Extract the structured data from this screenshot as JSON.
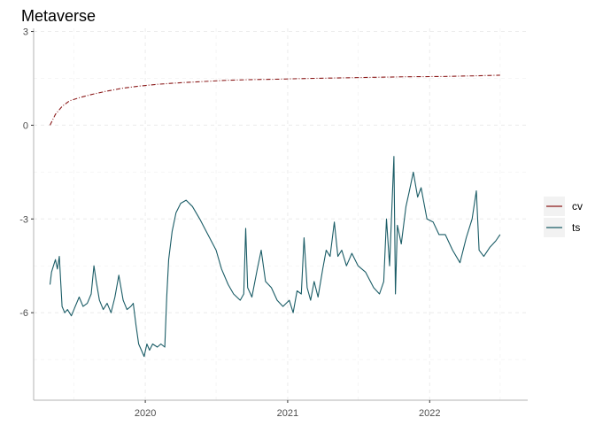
{
  "chart_data": {
    "type": "line",
    "title": "Metaverse",
    "xlabel": "",
    "ylabel": "",
    "x_ticks": [
      "2020",
      "2021",
      "2022"
    ],
    "y_ticks": [
      3,
      0,
      -3,
      -6
    ],
    "ylim": [
      -8.8,
      3.1
    ],
    "xlim": [
      "2019-03-20",
      "2022-09-10"
    ],
    "grid": true,
    "legend_position": "right",
    "series": [
      {
        "name": "cv",
        "color": "#8b1a1a",
        "line_style": "dot-dash",
        "points": [
          [
            "2019-05-01",
            0.0
          ],
          [
            "2019-05-15",
            0.35
          ],
          [
            "2019-06-01",
            0.6
          ],
          [
            "2019-06-20",
            0.78
          ],
          [
            "2019-07-15",
            0.88
          ],
          [
            "2019-08-15",
            0.98
          ],
          [
            "2019-09-20",
            1.08
          ],
          [
            "2019-11-01",
            1.18
          ],
          [
            "2019-12-15",
            1.25
          ],
          [
            "2020-02-01",
            1.31
          ],
          [
            "2020-04-01",
            1.36
          ],
          [
            "2020-06-01",
            1.4
          ],
          [
            "2020-08-01",
            1.44
          ],
          [
            "2020-10-01",
            1.46
          ],
          [
            "2020-12-01",
            1.47
          ],
          [
            "2021-02-01",
            1.49
          ],
          [
            "2021-05-01",
            1.51
          ],
          [
            "2021-08-01",
            1.53
          ],
          [
            "2021-11-01",
            1.55
          ],
          [
            "2022-02-01",
            1.56
          ],
          [
            "2022-05-01",
            1.58
          ],
          [
            "2022-07-01",
            1.6
          ]
        ]
      },
      {
        "name": "ts",
        "color": "#1a5c66",
        "line_style": "solid",
        "points": [
          [
            "2019-05-01",
            -5.1
          ],
          [
            "2019-05-05",
            -4.7
          ],
          [
            "2019-05-10",
            -4.5
          ],
          [
            "2019-05-15",
            -4.3
          ],
          [
            "2019-05-20",
            -4.6
          ],
          [
            "2019-05-25",
            -4.2
          ],
          [
            "2019-06-01",
            -5.8
          ],
          [
            "2019-06-08",
            -6.0
          ],
          [
            "2019-06-15",
            -5.9
          ],
          [
            "2019-06-25",
            -6.1
          ],
          [
            "2019-07-05",
            -5.8
          ],
          [
            "2019-07-15",
            -5.5
          ],
          [
            "2019-07-25",
            -5.8
          ],
          [
            "2019-08-05",
            -5.7
          ],
          [
            "2019-08-15",
            -5.4
          ],
          [
            "2019-08-22",
            -4.5
          ],
          [
            "2019-08-28",
            -5.0
          ],
          [
            "2019-09-05",
            -5.6
          ],
          [
            "2019-09-15",
            -5.9
          ],
          [
            "2019-09-25",
            -5.7
          ],
          [
            "2019-10-05",
            -6.0
          ],
          [
            "2019-10-15",
            -5.5
          ],
          [
            "2019-10-25",
            -4.8
          ],
          [
            "2019-11-05",
            -5.6
          ],
          [
            "2019-11-15",
            -5.9
          ],
          [
            "2019-11-25",
            -5.8
          ],
          [
            "2019-12-01",
            -5.7
          ],
          [
            "2019-12-08",
            -6.4
          ],
          [
            "2019-12-15",
            -7.0
          ],
          [
            "2019-12-22",
            -7.2
          ],
          [
            "2019-12-29",
            -7.4
          ],
          [
            "2020-01-05",
            -7.0
          ],
          [
            "2020-01-12",
            -7.2
          ],
          [
            "2020-01-20",
            -7.0
          ],
          [
            "2020-02-01",
            -7.1
          ],
          [
            "2020-02-10",
            -7.0
          ],
          [
            "2020-02-20",
            -7.1
          ],
          [
            "2020-02-25",
            -5.5
          ],
          [
            "2020-03-01",
            -4.3
          ],
          [
            "2020-03-10",
            -3.4
          ],
          [
            "2020-03-20",
            -2.8
          ],
          [
            "2020-04-01",
            -2.5
          ],
          [
            "2020-04-15",
            -2.4
          ],
          [
            "2020-05-01",
            -2.6
          ],
          [
            "2020-05-20",
            -3.0
          ],
          [
            "2020-06-10",
            -3.5
          ],
          [
            "2020-07-01",
            -4.0
          ],
          [
            "2020-07-15",
            -4.6
          ],
          [
            "2020-08-01",
            -5.1
          ],
          [
            "2020-08-15",
            -5.4
          ],
          [
            "2020-09-01",
            -5.6
          ],
          [
            "2020-09-10",
            -5.4
          ],
          [
            "2020-09-15",
            -3.3
          ],
          [
            "2020-09-20",
            -5.2
          ],
          [
            "2020-10-01",
            -5.5
          ],
          [
            "2020-10-15",
            -4.6
          ],
          [
            "2020-10-25",
            -4.0
          ],
          [
            "2020-11-05",
            -5.0
          ],
          [
            "2020-11-20",
            -5.2
          ],
          [
            "2020-12-05",
            -5.6
          ],
          [
            "2020-12-20",
            -5.8
          ],
          [
            "2021-01-05",
            -5.6
          ],
          [
            "2021-01-15",
            -6.0
          ],
          [
            "2021-01-25",
            -5.3
          ],
          [
            "2021-02-05",
            -5.4
          ],
          [
            "2021-02-12",
            -3.6
          ],
          [
            "2021-02-20",
            -5.2
          ],
          [
            "2021-03-01",
            -5.6
          ],
          [
            "2021-03-10",
            -5.0
          ],
          [
            "2021-03-20",
            -5.5
          ],
          [
            "2021-04-01",
            -4.6
          ],
          [
            "2021-04-10",
            -4.0
          ],
          [
            "2021-04-20",
            -4.2
          ],
          [
            "2021-05-01",
            -3.1
          ],
          [
            "2021-05-10",
            -4.2
          ],
          [
            "2021-05-20",
            -4.0
          ],
          [
            "2021-06-01",
            -4.5
          ],
          [
            "2021-06-15",
            -4.1
          ],
          [
            "2021-07-01",
            -4.5
          ],
          [
            "2021-07-20",
            -4.7
          ],
          [
            "2021-08-10",
            -5.2
          ],
          [
            "2021-08-25",
            -5.4
          ],
          [
            "2021-09-05",
            -5.0
          ],
          [
            "2021-09-12",
            -3.0
          ],
          [
            "2021-09-20",
            -4.5
          ],
          [
            "2021-10-01",
            -1.0
          ],
          [
            "2021-10-05",
            -5.4
          ],
          [
            "2021-10-10",
            -3.2
          ],
          [
            "2021-10-20",
            -3.8
          ],
          [
            "2021-11-01",
            -2.6
          ],
          [
            "2021-11-10",
            -2.1
          ],
          [
            "2021-11-20",
            -1.5
          ],
          [
            "2021-12-01",
            -2.3
          ],
          [
            "2021-12-10",
            -2.0
          ],
          [
            "2021-12-25",
            -3.0
          ],
          [
            "2022-01-10",
            -3.1
          ],
          [
            "2022-01-25",
            -3.5
          ],
          [
            "2022-02-10",
            -3.5
          ],
          [
            "2022-03-01",
            -4.0
          ],
          [
            "2022-03-20",
            -4.4
          ],
          [
            "2022-04-05",
            -3.6
          ],
          [
            "2022-04-20",
            -3.0
          ],
          [
            "2022-05-01",
            -2.1
          ],
          [
            "2022-05-08",
            -4.0
          ],
          [
            "2022-05-20",
            -4.2
          ],
          [
            "2022-06-05",
            -3.9
          ],
          [
            "2022-06-20",
            -3.7
          ],
          [
            "2022-07-01",
            -3.5
          ]
        ]
      }
    ]
  }
}
